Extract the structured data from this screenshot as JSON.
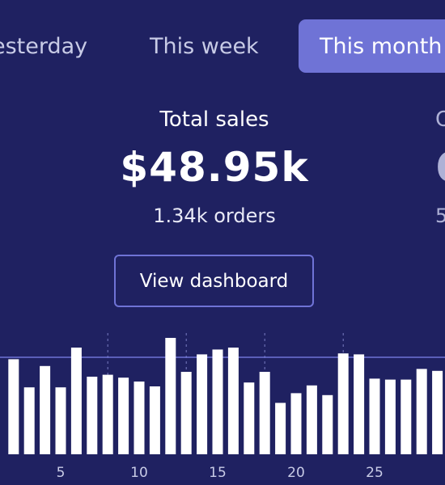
{
  "tabs": [
    {
      "label": "esterday",
      "active": false
    },
    {
      "label": "This week",
      "active": false
    },
    {
      "label": "This month",
      "active": true
    }
  ],
  "stats": {
    "primary": {
      "label": "Total sales",
      "value": "$48.95k",
      "sub": "1.34k orders"
    },
    "secondary_partial": {
      "label": "C",
      "value": "6",
      "sub": "5"
    }
  },
  "actions": {
    "view_dashboard": "View dashboard"
  },
  "colors": {
    "background": "#1f2161",
    "accent": "#6f73d6",
    "bar": "#ffffff",
    "muted_text": "#c8cbe6"
  },
  "chart_data": {
    "type": "bar",
    "x": [
      2,
      3,
      4,
      5,
      6,
      7,
      8,
      9,
      10,
      11,
      12,
      13,
      14,
      15,
      16,
      17,
      18,
      19,
      20,
      21,
      22,
      23,
      24,
      25,
      26,
      27,
      28,
      29
    ],
    "values": [
      98,
      69,
      91,
      69,
      110,
      80,
      82,
      79,
      75,
      70,
      120,
      85,
      103,
      108,
      110,
      74,
      85,
      53,
      63,
      71,
      61,
      104,
      103,
      78,
      77,
      77,
      88,
      86
    ],
    "x_ticks": [
      "5",
      "10",
      "15",
      "20",
      "25",
      ""
    ],
    "x_tick_positions": [
      5,
      10,
      15,
      20,
      25,
      30
    ],
    "grid_lines": [
      8,
      13,
      18,
      23
    ],
    "reference_line": 100,
    "ylim": [
      0,
      125
    ],
    "xlabel": "",
    "ylabel": ""
  }
}
